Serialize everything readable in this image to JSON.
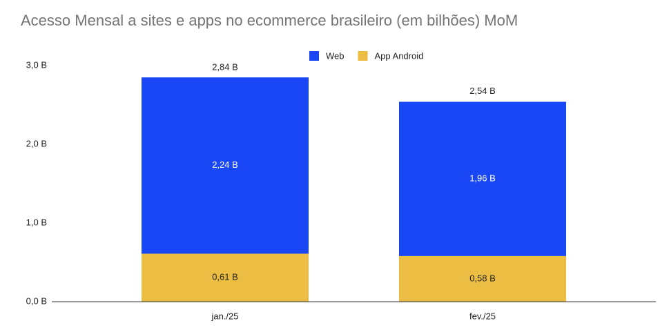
{
  "chart_data": {
    "type": "stacked_bar",
    "title": "Acesso Mensal a sites e apps no ecommerce brasileiro (em bilhões) MoM",
    "categories": [
      "jan./25",
      "fev./25"
    ],
    "series": [
      {
        "name": "Web",
        "color": "#1a47f5",
        "values": [
          2.24,
          1.96
        ],
        "value_labels": [
          "2,24 B",
          "1,96 B"
        ]
      },
      {
        "name": "App Android",
        "color": "#ecbd43",
        "values": [
          0.61,
          0.58
        ],
        "value_labels": [
          "0,61 B",
          "0,58 B"
        ]
      }
    ],
    "stack_order": [
      "App Android",
      "Web"
    ],
    "totals": {
      "values": [
        2.84,
        2.54
      ],
      "value_labels": [
        "2,84 B",
        "2,54 B"
      ]
    },
    "ylim": [
      0,
      3
    ],
    "yticks": [
      {
        "value": 0,
        "label": "0,0 B"
      },
      {
        "value": 1,
        "label": "1,0 B"
      },
      {
        "value": 2,
        "label": "2,0 B"
      },
      {
        "value": 3,
        "label": "3,0 B"
      }
    ],
    "grid": false,
    "legend": "top"
  }
}
